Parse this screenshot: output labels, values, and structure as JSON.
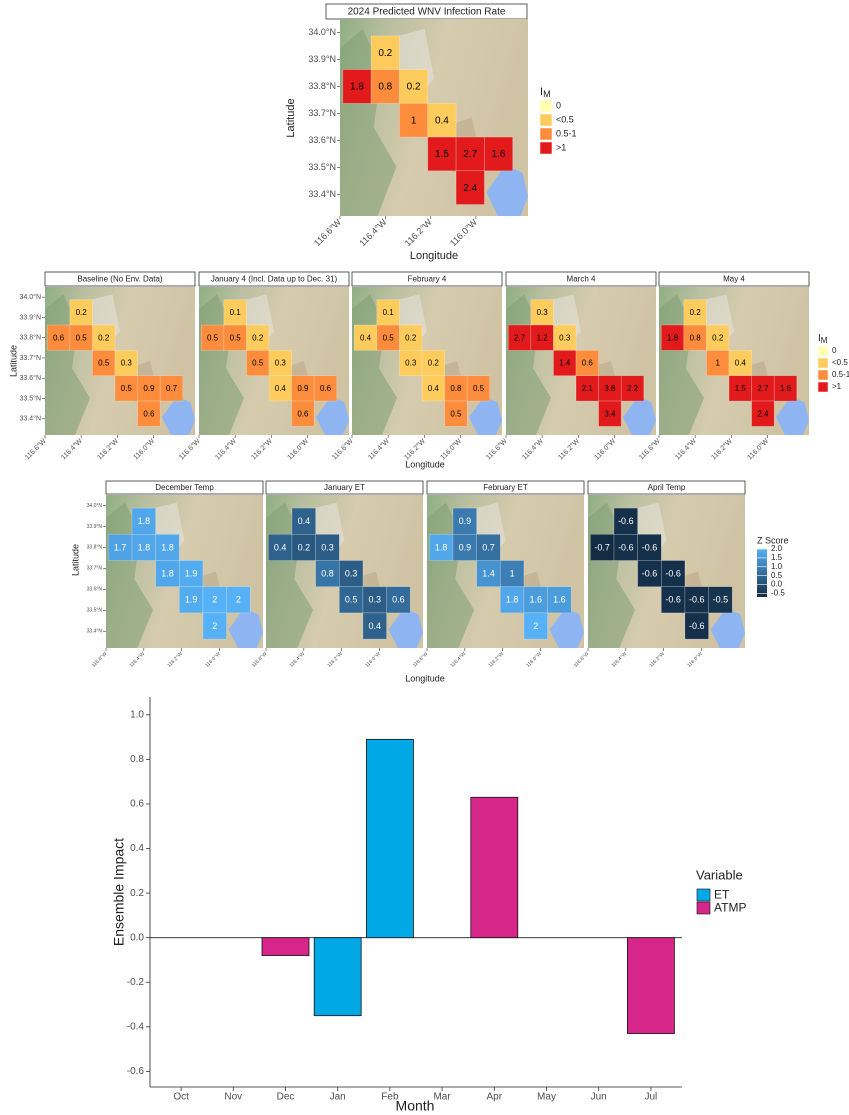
{
  "chart_data": [
    {
      "type": "tilemap",
      "title": "2024 Predicted WNV Infection Rate",
      "xlabel": "Longitude",
      "ylabel": "Latitude",
      "xlim": [
        -116.6,
        -115.77
      ],
      "ylim": [
        33.32,
        34.05
      ],
      "xticks": [
        {
          "value": -116.6,
          "label": "116.6°W"
        },
        {
          "value": -116.4,
          "label": "116.4°W"
        },
        {
          "value": -116.2,
          "label": "116.2°W"
        },
        {
          "value": -116.0,
          "label": "116.0°W"
        }
      ],
      "yticks": [
        {
          "value": 34.0,
          "label": "34.0°N"
        },
        {
          "value": 33.9,
          "label": "33.9°N"
        },
        {
          "value": 33.8,
          "label": "33.8°N"
        },
        {
          "value": 33.7,
          "label": "33.7°N"
        },
        {
          "value": 33.6,
          "label": "33.6°N"
        },
        {
          "value": 33.5,
          "label": "33.5°N"
        },
        {
          "value": 33.4,
          "label": "33.4°N"
        }
      ],
      "lon": [
        -116.4,
        -116.525,
        -116.4,
        -116.275,
        -116.275,
        -116.15,
        -116.15,
        -116.025,
        -115.9,
        -116.025
      ],
      "lat": [
        33.925,
        33.8,
        33.8,
        33.8,
        33.675,
        33.675,
        33.55,
        33.55,
        33.55,
        33.425
      ],
      "values": [
        0.2,
        1.8,
        0.8,
        0.2,
        1,
        0.4,
        1.5,
        2.7,
        1.6,
        2.4
      ],
      "text_color": "#000000",
      "legend": {
        "title": "I",
        "title_sub": "M",
        "labels": [
          "0",
          "<0.5",
          "0.5-1",
          ">1"
        ],
        "colors": [
          "#FFFFB2",
          "#FECC5C",
          "#FD8D3C",
          "#E31A1C"
        ],
        "breaks": [
          0,
          0.5,
          1
        ]
      }
    },
    {
      "type": "tilemap_facets",
      "xlabel": "Longitude",
      "ylabel": "Latitude",
      "xlim": [
        -116.6,
        -115.77
      ],
      "ylim": [
        33.32,
        34.05
      ],
      "xticks": [
        {
          "value": -116.6,
          "label": "116.6°W"
        },
        {
          "value": -116.4,
          "label": "116.4°W"
        },
        {
          "value": -116.2,
          "label": "116.2°W"
        },
        {
          "value": -116.0,
          "label": "116.0°W"
        }
      ],
      "yticks": [
        {
          "value": 34.0,
          "label": "34.0°N"
        },
        {
          "value": 33.9,
          "label": "33.9°N"
        },
        {
          "value": 33.8,
          "label": "33.8°N"
        },
        {
          "value": 33.7,
          "label": "33.7°N"
        },
        {
          "value": 33.6,
          "label": "33.6°N"
        },
        {
          "value": 33.5,
          "label": "33.5°N"
        },
        {
          "value": 33.4,
          "label": "33.4°N"
        }
      ],
      "lon": [
        -116.4,
        -116.525,
        -116.4,
        -116.275,
        -116.275,
        -116.15,
        -116.15,
        -116.025,
        -115.9,
        -116.025
      ],
      "lat": [
        33.925,
        33.8,
        33.8,
        33.8,
        33.675,
        33.675,
        33.55,
        33.55,
        33.55,
        33.425
      ],
      "panels": [
        {
          "title": "Baseline (No Env. Data)",
          "values": [
            0.2,
            0.6,
            0.5,
            0.2,
            0.5,
            0.3,
            0.5,
            0.9,
            0.7,
            0.6
          ]
        },
        {
          "title": "January 4 (Incl. Data up to Dec. 31)",
          "values": [
            0.1,
            0.5,
            0.5,
            0.2,
            0.5,
            0.3,
            0.4,
            0.9,
            0.6,
            0.6
          ]
        },
        {
          "title": "February 4",
          "values": [
            0.1,
            0.4,
            0.5,
            0.2,
            0.3,
            0.2,
            0.4,
            0.8,
            0.5,
            0.5
          ]
        },
        {
          "title": "March 4",
          "values": [
            0.3,
            2.7,
            1.2,
            0.3,
            1.4,
            0.6,
            2.1,
            3.8,
            2.2,
            3.4
          ]
        },
        {
          "title": "May 4",
          "values": [
            0.2,
            1.8,
            0.8,
            0.2,
            1,
            0.4,
            1.5,
            2.7,
            1.6,
            2.4
          ]
        }
      ],
      "text_color": "#000000",
      "legend": {
        "title": "I",
        "title_sub": "M",
        "labels": [
          "0",
          "<0.5",
          "0.5-1",
          ">1"
        ],
        "colors": [
          "#FFFFB2",
          "#FECC5C",
          "#FD8D3C",
          "#E31A1C"
        ],
        "breaks": [
          0,
          0.5,
          1
        ]
      }
    },
    {
      "type": "tilemap_facets",
      "xlabel": "Longitude",
      "ylabel": "Latitude",
      "xlim": [
        -116.6,
        -115.77
      ],
      "ylim": [
        33.32,
        34.05
      ],
      "xticks": [
        {
          "value": -116.6,
          "label": "116.6°W"
        },
        {
          "value": -116.4,
          "label": "116.4°W"
        },
        {
          "value": -116.2,
          "label": "116.2°W"
        },
        {
          "value": -116.0,
          "label": "116.0°W"
        }
      ],
      "yticks": [
        {
          "value": 34.0,
          "label": "34.0°N"
        },
        {
          "value": 33.9,
          "label": "33.9°N"
        },
        {
          "value": 33.8,
          "label": "33.8°N"
        },
        {
          "value": 33.7,
          "label": "33.7°N"
        },
        {
          "value": 33.6,
          "label": "33.6°N"
        },
        {
          "value": 33.5,
          "label": "33.5°N"
        },
        {
          "value": 33.4,
          "label": "33.4°N"
        }
      ],
      "lon": [
        -116.4,
        -116.525,
        -116.4,
        -116.275,
        -116.275,
        -116.15,
        -116.15,
        -116.025,
        -115.9,
        -116.025
      ],
      "lat": [
        33.925,
        33.8,
        33.8,
        33.8,
        33.675,
        33.675,
        33.55,
        33.55,
        33.55,
        33.425
      ],
      "panels": [
        {
          "title": "December Temp",
          "values": [
            1.8,
            1.7,
            1.8,
            1.8,
            1.8,
            1.9,
            1.9,
            2,
            2,
            2
          ]
        },
        {
          "title": "January ET",
          "values": [
            0.4,
            0.4,
            0.2,
            0.3,
            0.8,
            0.3,
            0.5,
            0.3,
            0.6,
            0.4
          ]
        },
        {
          "title": "February ET",
          "values": [
            0.9,
            1.8,
            0.9,
            0.7,
            1.4,
            1,
            1.8,
            1.6,
            1.6,
            2
          ]
        },
        {
          "title": "April Temp",
          "values": [
            -0.6,
            -0.7,
            -0.6,
            -0.6,
            -0.6,
            -0.6,
            -0.6,
            -0.6,
            -0.5,
            -0.6
          ]
        }
      ],
      "text_color": "#FFFFFF",
      "legend": {
        "title": "Z Score",
        "lim": [
          -0.7,
          2
        ],
        "colors": [
          "#132B43",
          "#56B1F7"
        ],
        "ticks": [
          {
            "value": 2,
            "label": "2.0"
          },
          1.5,
          {
            "value": 1,
            "label": "1.0"
          },
          0.5,
          {
            "value": 0,
            "label": "0.0"
          },
          -0.5
        ]
      }
    },
    {
      "type": "bar",
      "xlabel": "Month",
      "ylabel": "Ensemble Impact",
      "categories": [
        "Oct",
        "Nov",
        "Dec",
        "Jan",
        "Feb",
        "Mar",
        "Apr",
        "May",
        "Jun",
        "Jul"
      ],
      "series": [
        {
          "name": "ET",
          "color": "#00A9E6",
          "values": [
            null,
            null,
            null,
            -0.35,
            0.89,
            null,
            null,
            null,
            null,
            null
          ]
        },
        {
          "name": "ATMP",
          "color": "#D6268A",
          "values": [
            null,
            null,
            -0.08,
            null,
            null,
            null,
            0.63,
            null,
            null,
            -0.43
          ]
        }
      ],
      "ylim": [
        -0.67,
        1.08
      ],
      "yticks": [
        -0.6,
        -0.4,
        -0.2,
        {
          "value": 0,
          "label": "0.0"
        },
        0.2,
        0.4,
        0.6,
        0.8,
        {
          "value": 1,
          "label": "1.0"
        }
      ],
      "legend_title": "Variable"
    }
  ]
}
